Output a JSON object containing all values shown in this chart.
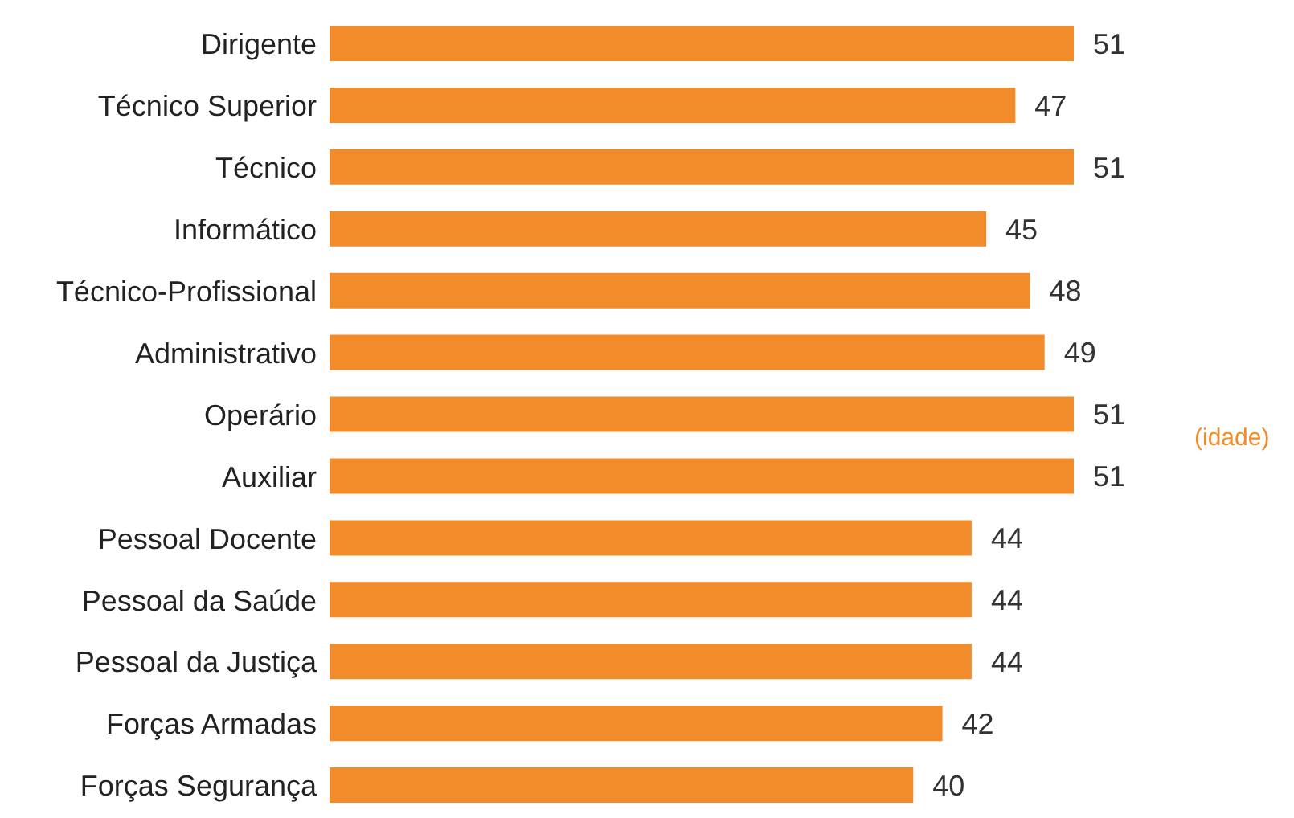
{
  "chart_data": {
    "type": "bar",
    "orientation": "horizontal",
    "categories": [
      "Dirigente",
      "Técnico Superior",
      "Técnico",
      "Informático",
      "Técnico-Profissional",
      "Administrativo",
      "Operário",
      "Auxiliar",
      "Pessoal Docente",
      "Pessoal da Saúde",
      "Pessoal da Justiça",
      "Forças Armadas",
      "Forças Segurança"
    ],
    "values": [
      51,
      47,
      51,
      45,
      48,
      49,
      51,
      51,
      44,
      44,
      44,
      42,
      40
    ],
    "color": "#f28c2a",
    "data_labels": true,
    "tick_labels": "y",
    "annotations": [
      "(idade)"
    ]
  }
}
